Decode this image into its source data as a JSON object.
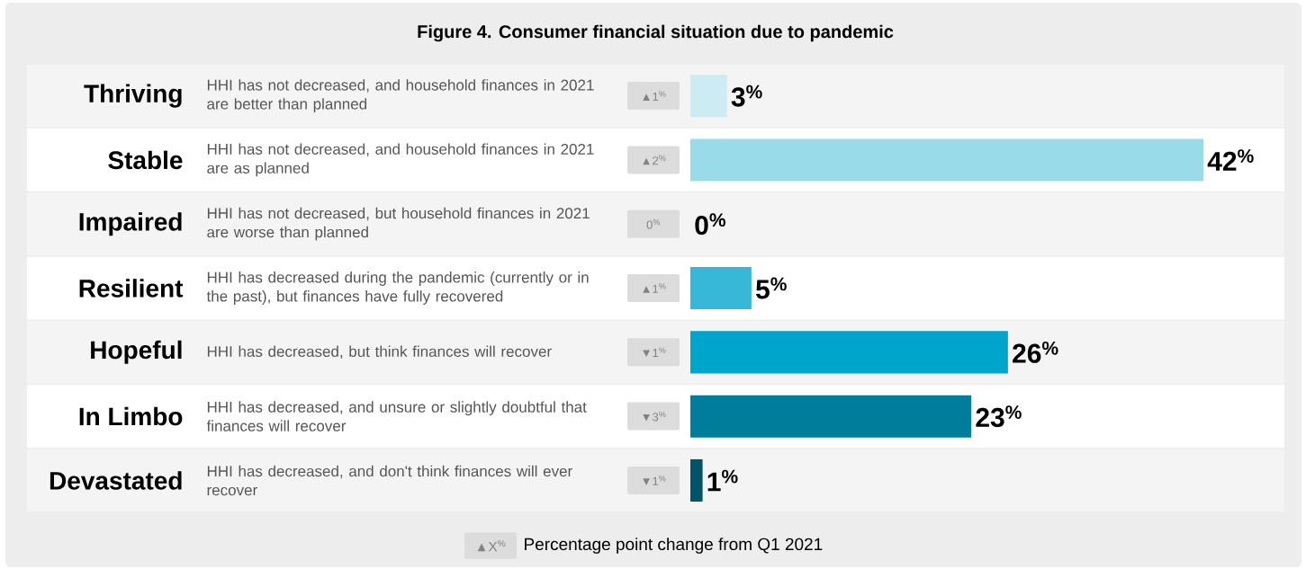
{
  "chart_data": {
    "type": "bar",
    "orientation": "horizontal",
    "title": "Figure 4. Consumer financial situation due to pandemic",
    "categories": [
      "Thriving",
      "Stable",
      "Impaired",
      "Resilient",
      "Hopeful",
      "In Limbo",
      "Devastated"
    ],
    "values": [
      3,
      42,
      0,
      5,
      26,
      23,
      1
    ],
    "colors": [
      "#cdebf3",
      "#9adbea",
      "#6fcbe0",
      "#36b8d6",
      "#00a5cb",
      "#007d9a",
      "#00546a"
    ],
    "value_labels": [
      "3$^{%}$",
      "42$^{%}$",
      "0$^{%}$",
      "5$^{%}$",
      "26$^{%}$",
      "23$^{%}$",
      "1$^{%}$"
    ],
    "annotations": [
      "HHI has not decreased, and household finances in 2021 are better than planned",
      "HHI has not decreased, and household finances in 2021 are as planned",
      "HHI has not decreased, but household finances in 2021 are worse than planned",
      "HHI has decreased during the pandemic (currently or in the past), but finances have fully recovered",
      "HHI has decreased, but think finances will recover",
      "HHI has decreased, and unsure or slightly doubtful that finances will recover",
      "HHI has decreased, and don't think finances will ever recover",
      "▲1$^{%}$",
      "▲2$^{%}$",
      "0$^{%}$",
      "▲1$^{%}$",
      "▼1$^{%}$",
      "▼3$^{%}$",
      "▼1$^{%}$",
      "▲X$^{%}$",
      "Percentage point change from Q1 2021"
    ]
  }
}
